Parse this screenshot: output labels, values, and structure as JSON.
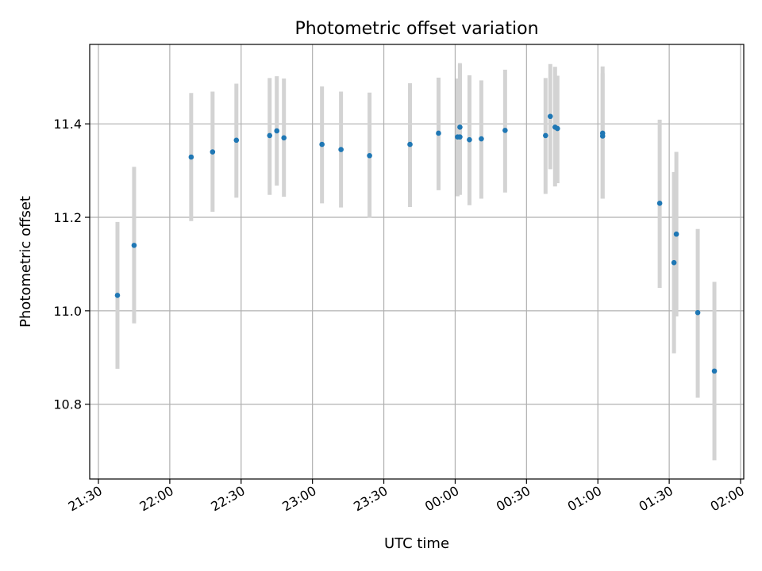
{
  "chart_data": {
    "type": "scatter",
    "title": "Photometric offset variation",
    "xlabel": "UTC time",
    "ylabel": "Photometric offset",
    "grid": true,
    "xlim": [
      "21:30",
      "02:00"
    ],
    "ylim": [
      10.64,
      11.57
    ],
    "x_ticks": [
      "21:30",
      "22:00",
      "22:30",
      "23:00",
      "23:30",
      "00:00",
      "00:30",
      "01:00",
      "01:30",
      "02:00"
    ],
    "y_ticks": [
      10.8,
      11.0,
      11.2,
      11.4
    ],
    "y_tick_labels": [
      "10.8",
      "11.0",
      "11.2",
      "11.4"
    ],
    "colors": {
      "point": "#1f77b4",
      "errorbar": "#d3d3d3"
    },
    "points": [
      {
        "t": "21:38",
        "y": 11.033,
        "lo": 10.876,
        "hi": 11.19
      },
      {
        "t": "21:45",
        "y": 11.14,
        "lo": 10.973,
        "hi": 11.308
      },
      {
        "t": "22:09",
        "y": 11.329,
        "lo": 11.192,
        "hi": 11.466
      },
      {
        "t": "22:18",
        "y": 11.34,
        "lo": 11.212,
        "hi": 11.469
      },
      {
        "t": "22:28",
        "y": 11.365,
        "lo": 11.242,
        "hi": 11.486
      },
      {
        "t": "22:42",
        "y": 11.375,
        "lo": 11.248,
        "hi": 11.498
      },
      {
        "t": "22:45",
        "y": 11.385,
        "lo": 11.268,
        "hi": 11.502
      },
      {
        "t": "22:48",
        "y": 11.37,
        "lo": 11.244,
        "hi": 11.497
      },
      {
        "t": "23:04",
        "y": 11.356,
        "lo": 11.23,
        "hi": 11.48
      },
      {
        "t": "23:12",
        "y": 11.345,
        "lo": 11.221,
        "hi": 11.469
      },
      {
        "t": "23:24",
        "y": 11.332,
        "lo": 11.199,
        "hi": 11.467
      },
      {
        "t": "23:41",
        "y": 11.356,
        "lo": 11.222,
        "hi": 11.487
      },
      {
        "t": "23:53",
        "y": 11.38,
        "lo": 11.258,
        "hi": 11.499
      },
      {
        "t": "00:01",
        "y": 11.372,
        "lo": 11.245,
        "hi": 11.497
      },
      {
        "t": "00:02",
        "y": 11.372,
        "lo": 11.248,
        "hi": 11.53
      },
      {
        "t": "00:02",
        "y": 11.393,
        "lo": 11.262,
        "hi": 11.527
      },
      {
        "t": "00:06",
        "y": 11.366,
        "lo": 11.226,
        "hi": 11.504
      },
      {
        "t": "00:11",
        "y": 11.368,
        "lo": 11.24,
        "hi": 11.493
      },
      {
        "t": "00:21",
        "y": 11.386,
        "lo": 11.253,
        "hi": 11.516
      },
      {
        "t": "00:38",
        "y": 11.375,
        "lo": 11.25,
        "hi": 11.498
      },
      {
        "t": "00:40",
        "y": 11.416,
        "lo": 11.303,
        "hi": 11.528
      },
      {
        "t": "00:42",
        "y": 11.393,
        "lo": 11.266,
        "hi": 11.522
      },
      {
        "t": "00:43",
        "y": 11.39,
        "lo": 11.273,
        "hi": 11.503
      },
      {
        "t": "01:02",
        "y": 11.38,
        "lo": 11.24,
        "hi": 11.523
      },
      {
        "t": "01:02",
        "y": 11.374,
        "lo": 11.24,
        "hi": 11.508
      },
      {
        "t": "01:26",
        "y": 11.23,
        "lo": 11.049,
        "hi": 11.409
      },
      {
        "t": "01:32",
        "y": 11.103,
        "lo": 10.909,
        "hi": 11.297
      },
      {
        "t": "01:33",
        "y": 11.164,
        "lo": 10.988,
        "hi": 11.34
      },
      {
        "t": "01:42",
        "y": 10.996,
        "lo": 10.814,
        "hi": 11.175
      },
      {
        "t": "01:49",
        "y": 10.871,
        "lo": 10.68,
        "hi": 11.062
      }
    ]
  }
}
